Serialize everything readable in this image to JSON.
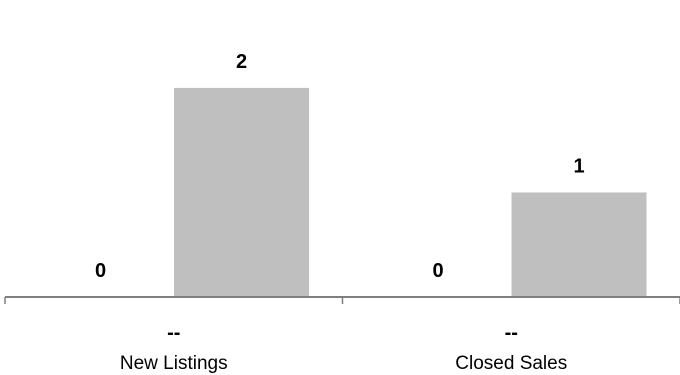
{
  "chart_data": {
    "type": "bar",
    "categories": [
      "New Listings",
      "Closed Sales"
    ],
    "series": [
      {
        "values": [
          0,
          0
        ],
        "color": "#bfbfbf"
      },
      {
        "values": [
          2,
          1
        ],
        "color": "#bfbfbf"
      }
    ],
    "change_labels": [
      "--",
      "--"
    ],
    "ylim": [
      0,
      2.2
    ],
    "grid": false,
    "legend": "none",
    "axis_color": "#7f7f7f"
  }
}
